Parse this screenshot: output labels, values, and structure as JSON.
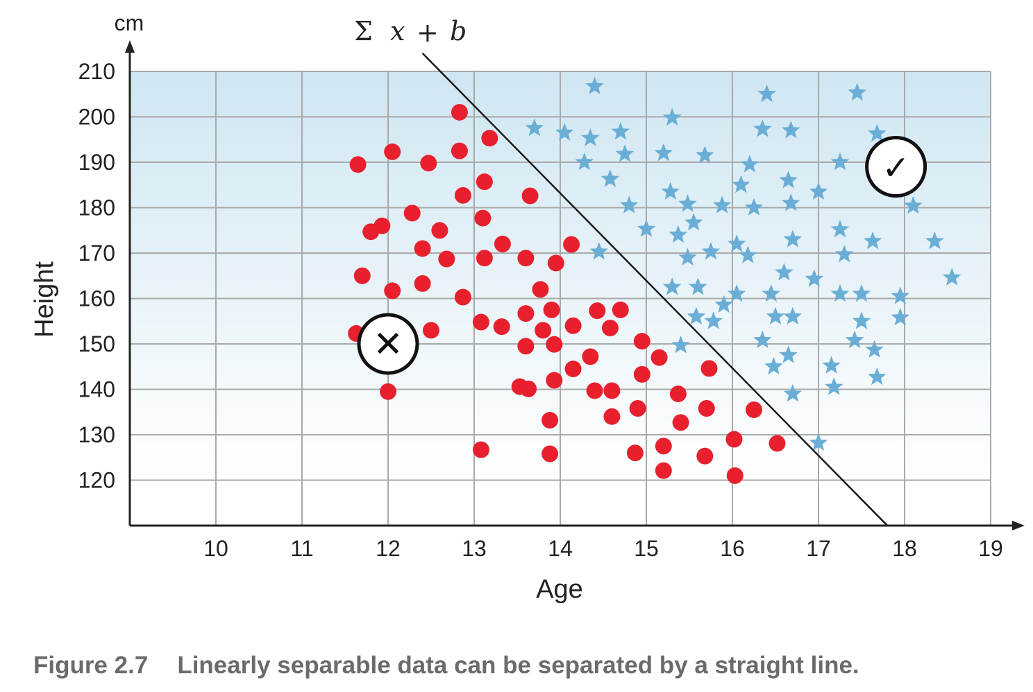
{
  "chart_data": {
    "type": "scatter",
    "xlabel": "Age",
    "ylabel": "Height",
    "y_unit": "cm",
    "xlim": [
      9,
      19
    ],
    "ylim": [
      110,
      210
    ],
    "x_ticks": [
      10,
      11,
      12,
      13,
      14,
      15,
      16,
      17,
      18,
      19
    ],
    "y_ticks": [
      120,
      130,
      140,
      150,
      160,
      170,
      180,
      190,
      200,
      210
    ],
    "grid": true,
    "annotations": {
      "equation": {
        "sigma": "Σ",
        "x": "x",
        "plus": "+",
        "b": "b"
      },
      "decision_line": {
        "x1": 12.4,
        "y1": 214,
        "x2": 17.8,
        "y2": 110
      },
      "reject_marker": {
        "x": 12.0,
        "y": 150,
        "symbol": "✕"
      },
      "accept_marker": {
        "x": 17.9,
        "y": 189,
        "symbol": "✓"
      }
    },
    "series": [
      {
        "marker": "circle",
        "color": "#e8202e",
        "points": [
          [
            11.65,
            189.5
          ],
          [
            11.8,
            174.7
          ],
          [
            11.93,
            176
          ],
          [
            11.7,
            165
          ],
          [
            11.63,
            152.3
          ],
          [
            12.05,
            192.3
          ],
          [
            12.05,
            161.7
          ],
          [
            12.0,
            139.5
          ],
          [
            12.28,
            178.8
          ],
          [
            12.4,
            171
          ],
          [
            12.4,
            163.3
          ],
          [
            12.47,
            189.8
          ],
          [
            12.5,
            153
          ],
          [
            12.6,
            175
          ],
          [
            12.68,
            168.7
          ],
          [
            12.83,
            201
          ],
          [
            12.83,
            192.5
          ],
          [
            12.87,
            182.7
          ],
          [
            12.87,
            160.3
          ],
          [
            13.08,
            154.8
          ],
          [
            13.08,
            126.7
          ],
          [
            13.1,
            177.7
          ],
          [
            13.12,
            185.7
          ],
          [
            13.12,
            168.9
          ],
          [
            13.18,
            195.3
          ],
          [
            13.32,
            153.8
          ],
          [
            13.33,
            172
          ],
          [
            13.53,
            140.6
          ],
          [
            13.6,
            149.5
          ],
          [
            13.6,
            156.7
          ],
          [
            13.6,
            168.9
          ],
          [
            13.63,
            140.1
          ],
          [
            13.65,
            182.6
          ],
          [
            13.77,
            162
          ],
          [
            13.8,
            153
          ],
          [
            13.9,
            157.5
          ],
          [
            13.88,
            133.2
          ],
          [
            13.88,
            125.8
          ],
          [
            13.93,
            149.9
          ],
          [
            13.93,
            142
          ],
          [
            13.95,
            167.8
          ],
          [
            14.13,
            171.9
          ],
          [
            14.15,
            154
          ],
          [
            14.15,
            144.5
          ],
          [
            14.35,
            147.2
          ],
          [
            14.4,
            139.7
          ],
          [
            14.43,
            157.3
          ],
          [
            14.58,
            153.5
          ],
          [
            14.6,
            139.7
          ],
          [
            14.6,
            134
          ],
          [
            14.7,
            157.5
          ],
          [
            14.87,
            126
          ],
          [
            14.9,
            135.8
          ],
          [
            14.95,
            150.6
          ],
          [
            14.95,
            143.3
          ],
          [
            15.15,
            147
          ],
          [
            15.2,
            127.5
          ],
          [
            15.2,
            122.1
          ],
          [
            15.37,
            139
          ],
          [
            15.4,
            132.7
          ],
          [
            15.68,
            125.3
          ],
          [
            15.7,
            135.8
          ],
          [
            15.73,
            144.6
          ],
          [
            16.02,
            129
          ],
          [
            16.03,
            121
          ],
          [
            16.25,
            135.5
          ],
          [
            16.52,
            128.1
          ]
        ]
      },
      {
        "marker": "star",
        "color": "#6aaed6",
        "points": [
          [
            14.4,
            206.7
          ],
          [
            13.7,
            197.5
          ],
          [
            14.05,
            196.5
          ],
          [
            14.35,
            195.3
          ],
          [
            14.28,
            190
          ],
          [
            14.7,
            196.7
          ],
          [
            14.75,
            191.8
          ],
          [
            14.58,
            186.3
          ],
          [
            14.8,
            180.5
          ],
          [
            14.45,
            170.3
          ],
          [
            15.3,
            199.8
          ],
          [
            15.2,
            192
          ],
          [
            15.68,
            191.5
          ],
          [
            15.28,
            183.5
          ],
          [
            15.48,
            180.8
          ],
          [
            15.88,
            180.5
          ],
          [
            15.0,
            175.3
          ],
          [
            15.37,
            174
          ],
          [
            15.55,
            176.7
          ],
          [
            15.48,
            169
          ],
          [
            15.75,
            170.3
          ],
          [
            15.3,
            162.5
          ],
          [
            15.6,
            162.5
          ],
          [
            15.58,
            156
          ],
          [
            15.9,
            158.6
          ],
          [
            15.78,
            155
          ],
          [
            15.4,
            149.7
          ],
          [
            16.4,
            205
          ],
          [
            16.35,
            197.3
          ],
          [
            16.68,
            197
          ],
          [
            16.1,
            185
          ],
          [
            16.2,
            189.5
          ],
          [
            16.25,
            180
          ],
          [
            16.65,
            186
          ],
          [
            16.68,
            181
          ],
          [
            16.7,
            173
          ],
          [
            16.05,
            172
          ],
          [
            16.18,
            169.5
          ],
          [
            16.6,
            165.7
          ],
          [
            16.05,
            161
          ],
          [
            16.45,
            161
          ],
          [
            16.5,
            156
          ],
          [
            16.7,
            156
          ],
          [
            16.35,
            150.8
          ],
          [
            16.48,
            145
          ],
          [
            16.65,
            147.5
          ],
          [
            16.7,
            139
          ],
          [
            17.0,
            183.5
          ],
          [
            17.25,
            190
          ],
          [
            17.25,
            175.2
          ],
          [
            17.3,
            169.7
          ],
          [
            16.95,
            164.3
          ],
          [
            17.25,
            161
          ],
          [
            17.5,
            161
          ],
          [
            17.5,
            155
          ],
          [
            17.42,
            150.8
          ],
          [
            17.65,
            148.7
          ],
          [
            17.15,
            145.2
          ],
          [
            17.18,
            140.5
          ],
          [
            17.68,
            142.7
          ],
          [
            17.0,
            128.2
          ],
          [
            17.45,
            205.3
          ],
          [
            17.68,
            196.3
          ],
          [
            17.63,
            172.6
          ],
          [
            18.1,
            180.4
          ],
          [
            18.35,
            172.6
          ],
          [
            18.55,
            164.6
          ],
          [
            17.95,
            160.5
          ],
          [
            17.95,
            155.8
          ]
        ]
      }
    ]
  },
  "caption": {
    "number": "Figure 2.7",
    "text": "Linearly separable data can be separated by a straight line."
  }
}
